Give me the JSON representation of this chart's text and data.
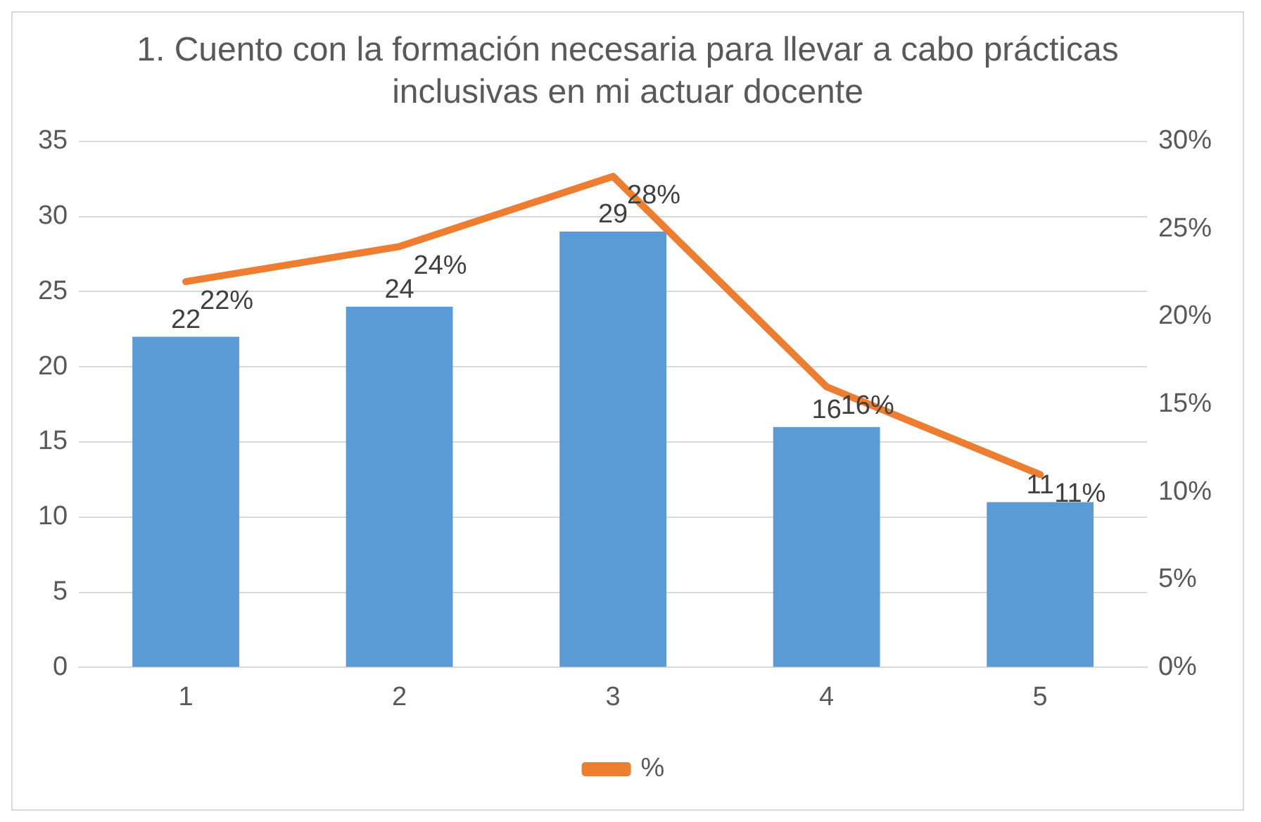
{
  "chart_data": {
    "type": "bar",
    "title": "1. Cuento con la formación necesaria para llevar a cabo prácticas inclusivas en mi actuar docente",
    "categories": [
      "1",
      "2",
      "3",
      "4",
      "5"
    ],
    "series": [
      {
        "color": "#5b9bd5",
        "values": [
          22,
          24,
          29,
          16,
          11
        ],
        "value_labels": [
          "22",
          "24",
          "29",
          "16",
          "11"
        ]
      },
      {
        "name": "%",
        "type": "line",
        "axis": "y2",
        "color": "#ed7d31",
        "values": [
          22,
          24,
          28,
          16,
          11
        ],
        "value_labels": [
          "22%",
          "24%",
          "28%",
          "16%",
          "11%"
        ]
      }
    ],
    "ylim": [
      0,
      35
    ],
    "yticks": [
      0,
      5,
      10,
      15,
      20,
      25,
      30,
      35
    ],
    "y2lim": [
      0,
      30
    ],
    "y2ticks": [
      {
        "value": 0,
        "label": "0%"
      },
      {
        "value": 5,
        "label": "5%"
      },
      {
        "value": 10,
        "label": "10%"
      },
      {
        "value": 15,
        "label": "15%"
      },
      {
        "value": 20,
        "label": "20%"
      },
      {
        "value": 25,
        "label": "25%"
      },
      {
        "value": 30,
        "label": "30%"
      }
    ],
    "grid": "y",
    "legend": "bottom",
    "marker": "none",
    "line_style": "solid"
  }
}
